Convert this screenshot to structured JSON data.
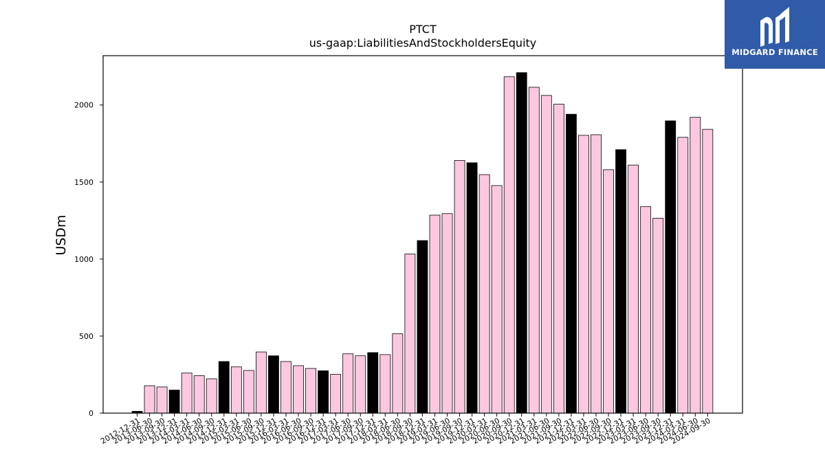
{
  "brand": {
    "name": "MIDGARD FINANCE",
    "bg_color": "#2f5ba8"
  },
  "chart_data": {
    "type": "bar",
    "title": "PTCT",
    "subtitle": "us-gaap:LiabilitiesAndStockholdersEquity",
    "ylabel": "USDm",
    "xlabel": "",
    "ylim": [
      0,
      2320
    ],
    "yticks": [
      0,
      500,
      1000,
      1500,
      2000
    ],
    "colors": {
      "normal": "#fcc8df",
      "annual": "#000000",
      "edge": "#000000"
    },
    "categories": [
      "2012-12-31",
      "2013-06-30",
      "2013-09-30",
      "2013-12-31",
      "2014-03-31",
      "2014-06-30",
      "2014-09-30",
      "2014-12-31",
      "2015-03-31",
      "2015-06-30",
      "2015-09-30",
      "2015-12-31",
      "2016-03-31",
      "2016-06-30",
      "2016-09-30",
      "2016-12-31",
      "2017-03-31",
      "2017-06-30",
      "2017-09-30",
      "2017-12-31",
      "2018-03-31",
      "2018-06-30",
      "2018-09-30",
      "2018-12-31",
      "2019-03-31",
      "2019-06-30",
      "2019-09-30",
      "2019-12-31",
      "2020-03-31",
      "2020-06-30",
      "2020-09-30",
      "2020-12-31",
      "2021-03-31",
      "2021-06-30",
      "2021-09-30",
      "2021-12-31",
      "2022-03-31",
      "2022-06-30",
      "2022-09-30",
      "2022-12-31",
      "2023-03-31",
      "2023-06-30",
      "2023-09-30",
      "2023-12-31",
      "2024-03-31",
      "2024-06-30",
      "2024-09-30"
    ],
    "values": [
      12,
      178,
      170,
      150,
      260,
      243,
      223,
      335,
      300,
      277,
      397,
      372,
      335,
      308,
      290,
      275,
      252,
      385,
      372,
      393,
      380,
      515,
      1033,
      1120,
      1285,
      1295,
      1640,
      1625,
      1548,
      1477,
      2183,
      2210,
      2115,
      2062,
      2005,
      1940,
      1803,
      1807,
      1580,
      1710,
      1610,
      1340,
      1265,
      1897,
      1790,
      1920,
      1842
    ],
    "highlighted": [
      true,
      false,
      false,
      true,
      false,
      false,
      false,
      true,
      false,
      false,
      false,
      true,
      false,
      false,
      false,
      true,
      false,
      false,
      false,
      true,
      false,
      false,
      false,
      true,
      false,
      false,
      false,
      true,
      false,
      false,
      false,
      true,
      false,
      false,
      false,
      true,
      false,
      false,
      false,
      true,
      false,
      false,
      false,
      true,
      false,
      false,
      false
    ]
  }
}
